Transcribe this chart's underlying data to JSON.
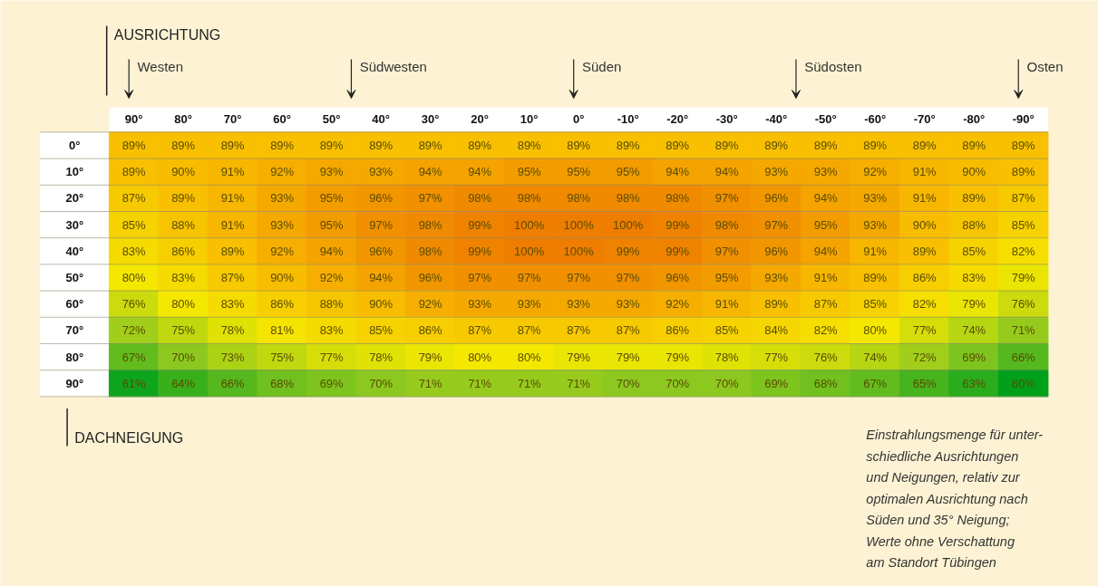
{
  "chart_data": {
    "type": "heatmap",
    "xlabel": "AUSRICHTUNG",
    "ylabel": "DACHNEIGUNG",
    "categories": [
      "90°",
      "80°",
      "70°",
      "60°",
      "50°",
      "40°",
      "30°",
      "20°",
      "10°",
      "0°",
      "-10°",
      "-20°",
      "-30°",
      "-40°",
      "-50°",
      "-60°",
      "-70°",
      "-80°",
      "-90°"
    ],
    "y_categories": [
      "0°",
      "10°",
      "20°",
      "30°",
      "40°",
      "50°",
      "60°",
      "70°",
      "80°",
      "90°"
    ],
    "cells": [
      [
        89,
        89,
        89,
        89,
        89,
        89,
        89,
        89,
        89,
        89,
        89,
        89,
        89,
        89,
        89,
        89,
        89,
        89,
        89
      ],
      [
        89,
        90,
        91,
        92,
        93,
        93,
        94,
        94,
        95,
        95,
        95,
        94,
        94,
        93,
        93,
        92,
        91,
        90,
        89
      ],
      [
        87,
        89,
        91,
        93,
        95,
        96,
        97,
        98,
        98,
        98,
        98,
        98,
        97,
        96,
        94,
        93,
        91,
        89,
        87
      ],
      [
        85,
        88,
        91,
        93,
        95,
        97,
        98,
        99,
        100,
        100,
        100,
        99,
        98,
        97,
        95,
        93,
        90,
        88,
        85
      ],
      [
        83,
        86,
        89,
        92,
        94,
        96,
        98,
        99,
        100,
        100,
        99,
        99,
        97,
        96,
        94,
        91,
        89,
        85,
        82
      ],
      [
        80,
        83,
        87,
        90,
        92,
        94,
        96,
        97,
        97,
        97,
        97,
        96,
        95,
        93,
        91,
        89,
        86,
        83,
        79
      ],
      [
        76,
        80,
        83,
        86,
        88,
        90,
        92,
        93,
        93,
        93,
        93,
        92,
        91,
        89,
        87,
        85,
        82,
        79,
        76
      ],
      [
        72,
        75,
        78,
        81,
        83,
        85,
        86,
        87,
        87,
        87,
        87,
        86,
        85,
        84,
        82,
        80,
        77,
        74,
        71
      ],
      [
        67,
        70,
        73,
        75,
        77,
        78,
        79,
        80,
        80,
        79,
        79,
        79,
        78,
        77,
        76,
        74,
        72,
        69,
        66
      ],
      [
        61,
        64,
        66,
        68,
        69,
        70,
        71,
        71,
        71,
        71,
        70,
        70,
        70,
        69,
        68,
        67,
        65,
        63,
        60
      ]
    ],
    "cell_labels": [
      [
        "89%",
        "89%",
        "89%",
        "89%",
        "89%",
        "89%",
        "89%",
        "89%",
        "89%",
        "89%",
        "89%",
        "89%",
        "89%",
        "89%",
        "89%",
        "89%",
        "89%",
        "89%",
        "89%"
      ],
      [
        "89%",
        "90%",
        "91%",
        "92%",
        "93%",
        "93%",
        "94%",
        "94%",
        "95%",
        "95%",
        "95%",
        "94%",
        "94%",
        "93%",
        "93%",
        "92%",
        "91%",
        "90%",
        "89%"
      ],
      [
        "87%",
        "89%",
        "91%",
        "93%",
        "95%",
        "96%",
        "97%",
        "98%",
        "98%",
        "98%",
        "98%",
        "98%",
        "97%",
        "96%",
        "94%",
        "93%",
        "91%",
        "89%",
        "87%"
      ],
      [
        "85%",
        "88%",
        "91%",
        "93%",
        "95%",
        "97%",
        "98%",
        "99%",
        "100%",
        "100%",
        "100%",
        "99%",
        "98%",
        "97%",
        "95%",
        "93%",
        "90%",
        "88%",
        "85%"
      ],
      [
        "83%",
        "86%",
        "89%",
        "92%",
        "94%",
        "96%",
        "98%",
        "99%",
        "100%",
        "100%",
        "99%",
        "99%",
        "97%",
        "96%",
        "94%",
        "91%",
        "89%",
        "85%",
        "82%"
      ],
      [
        "80%",
        "83%",
        "87%",
        "90%",
        "92%",
        "94%",
        "96%",
        "97%",
        "97%",
        "97%",
        "97%",
        "96%",
        "95%",
        "93%",
        "91%",
        "89%",
        "86%",
        "83%",
        "79%"
      ],
      [
        "76%",
        "80%",
        "83%",
        "86%",
        "88%",
        "90%",
        "92%",
        "93%",
        "93%",
        "93%",
        "93%",
        "92%",
        "91%",
        "89%",
        "87%",
        "85%",
        "82%",
        "79%",
        "76%"
      ],
      [
        "72%",
        "75%",
        "78%",
        "81%",
        "83%",
        "85%",
        "86%",
        "87%",
        "87%",
        "87%",
        "87%",
        "86%",
        "85%",
        "84%",
        "82%",
        "80%",
        "77%",
        "74%",
        "71%"
      ],
      [
        "67%",
        "70%",
        "73%",
        "75%",
        "77%",
        "78%",
        "79%",
        "80%",
        "80%",
        "79%",
        "79%",
        "79%",
        "78%",
        "77%",
        "76%",
        "74%",
        "72%",
        "69%",
        "66%"
      ],
      [
        "61%",
        "64%",
        "66%",
        "68%",
        "69%",
        "70%",
        "71%",
        "71%",
        "71%",
        "71%",
        "70%",
        "70%",
        "70%",
        "69%",
        "68%",
        "67%",
        "65%",
        "63%",
        "60%"
      ]
    ],
    "colors": [
      "#00a01a",
      "#8cc820",
      "#f5e800",
      "#f8bc00",
      "#ee7d00"
    ],
    "data_labels": true,
    "annotations": [
      "Westen",
      "Südwesten",
      "Süden",
      "Südosten",
      "Osten",
      "Einstrahlungsmenge für unter-\nschiedliche Ausrichtungen\nund Neigungen, relativ zur\noptimalen Ausrichtung nach\nSüden und 35° Neigung;\nWerte ohne Verschattung\nam Standort Tübingen"
    ]
  }
}
